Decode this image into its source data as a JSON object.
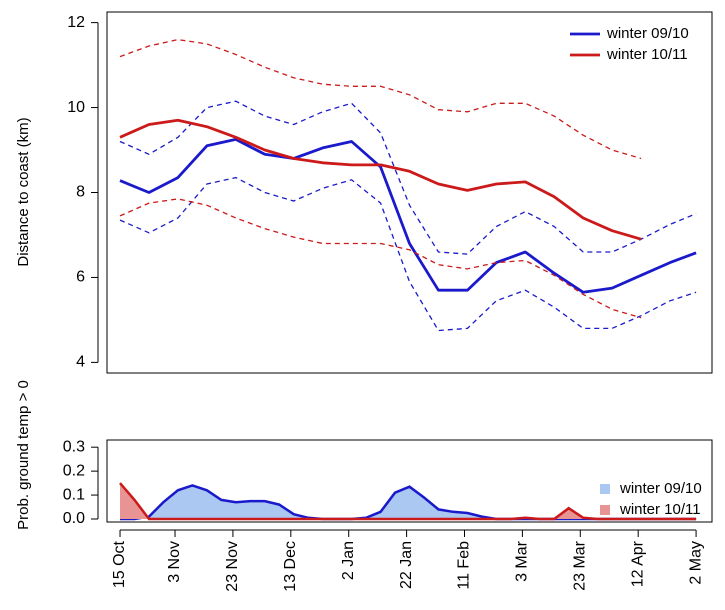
{
  "chart_data": [
    {
      "type": "line",
      "ylabel": "Distance to coast (km)",
      "x": [
        0,
        10,
        20,
        30,
        40,
        50,
        60,
        70,
        80,
        90,
        100,
        110,
        120,
        130,
        140,
        150,
        160,
        170,
        180,
        190,
        199
      ],
      "xlim": [
        -4.5,
        204.5
      ],
      "ylim": [
        3.75,
        12.25
      ],
      "yticks": [
        4,
        6,
        8,
        10,
        12
      ],
      "legend": "top-right",
      "series": [
        {
          "name": "winter 09/10",
          "color": "#1a1acc",
          "values": [
            8.28,
            8.0,
            8.35,
            9.1,
            9.25,
            8.9,
            8.8,
            9.05,
            9.2,
            8.6,
            6.8,
            5.7,
            5.7,
            6.35,
            6.6,
            6.1,
            5.65,
            5.75,
            6.05,
            6.35,
            6.58
          ],
          "upper": [
            9.2,
            8.9,
            9.3,
            10.0,
            10.15,
            9.8,
            9.6,
            9.9,
            10.1,
            9.4,
            7.7,
            6.6,
            6.55,
            7.2,
            7.55,
            7.2,
            6.6,
            6.6,
            6.9,
            7.25,
            7.5
          ],
          "lower": [
            7.35,
            7.05,
            7.4,
            8.2,
            8.35,
            8.0,
            7.8,
            8.1,
            8.3,
            7.75,
            5.9,
            4.75,
            4.8,
            5.45,
            5.7,
            5.3,
            4.8,
            4.8,
            5.1,
            5.45,
            5.65
          ]
        },
        {
          "name": "winter 10/11",
          "color": "#cc1a1a",
          "values": [
            9.3,
            9.6,
            9.7,
            9.55,
            9.3,
            9.0,
            8.8,
            8.7,
            8.65,
            8.65,
            8.5,
            8.2,
            8.05,
            8.2,
            8.25,
            7.9,
            7.4,
            7.1,
            6.9,
            null,
            null
          ],
          "upper": [
            11.2,
            11.45,
            11.6,
            11.5,
            11.25,
            10.95,
            10.7,
            10.55,
            10.5,
            10.5,
            10.3,
            9.95,
            9.9,
            10.1,
            10.1,
            9.8,
            9.35,
            9.0,
            8.8,
            null,
            null
          ],
          "lower": [
            7.45,
            7.75,
            7.85,
            7.7,
            7.4,
            7.15,
            6.95,
            6.8,
            6.8,
            6.8,
            6.65,
            6.3,
            6.2,
            6.35,
            6.4,
            6.05,
            5.6,
            5.25,
            5.05,
            null,
            null
          ]
        }
      ]
    },
    {
      "type": "area",
      "ylabel": "Prob. ground temp > 0",
      "x": [
        0,
        5,
        10,
        15,
        20,
        25,
        30,
        35,
        40,
        45,
        50,
        55,
        60,
        65,
        70,
        75,
        80,
        85,
        90,
        95,
        100,
        105,
        110,
        115,
        120,
        125,
        130,
        135,
        140,
        145,
        150,
        155,
        160,
        165,
        170,
        175,
        180,
        185,
        190,
        195,
        199
      ],
      "xlim": [
        -4.5,
        204.5
      ],
      "ylim": [
        -0.0125,
        0.33
      ],
      "yticks": [
        {
          "value": 0,
          "label": "0.0"
        },
        0.1,
        0.2,
        0.3
      ],
      "xticks": [
        {
          "value": 0,
          "label": "15 Oct"
        },
        {
          "value": 19,
          "label": "3 Nov"
        },
        {
          "value": 39,
          "label": "23 Nov"
        },
        {
          "value": 59,
          "label": "13 Dec"
        },
        {
          "value": 79,
          "label": "2 Jan"
        },
        {
          "value": 99,
          "label": "22 Jan"
        },
        {
          "value": 119,
          "label": "11 Feb"
        },
        {
          "value": 139,
          "label": "3 Mar"
        },
        {
          "value": 159,
          "label": "23 Mar"
        },
        {
          "value": 179,
          "label": "12 Apr"
        },
        {
          "value": 199,
          "label": "2 May"
        }
      ],
      "legend": "bottom-right",
      "series": [
        {
          "name": "winter 09/10",
          "color": "#1a1acc",
          "fill": "#aac8f2",
          "values": [
            0,
            0,
            0.01,
            0.07,
            0.12,
            0.14,
            0.12,
            0.08,
            0.07,
            0.075,
            0.075,
            0.06,
            0.02,
            0.005,
            0,
            0,
            0,
            0.005,
            0.03,
            0.11,
            0.135,
            0.09,
            0.04,
            0.03,
            0.025,
            0.01,
            0,
            0,
            0,
            0,
            0,
            0,
            0,
            0,
            0,
            0,
            0,
            0,
            0,
            0,
            0
          ]
        },
        {
          "name": "winter 10/11",
          "color": "#cc1a1a",
          "fill": "#e89494",
          "values": [
            0.15,
            0.08,
            0,
            0,
            0,
            0,
            0,
            0,
            0,
            0,
            0,
            0,
            0,
            0,
            0,
            0,
            0,
            0,
            0,
            0,
            0,
            0,
            0,
            0,
            0,
            0,
            0,
            0,
            0.005,
            0,
            0,
            0.045,
            0.005,
            0,
            0,
            0,
            0,
            0,
            0,
            0,
            0
          ]
        }
      ]
    }
  ]
}
